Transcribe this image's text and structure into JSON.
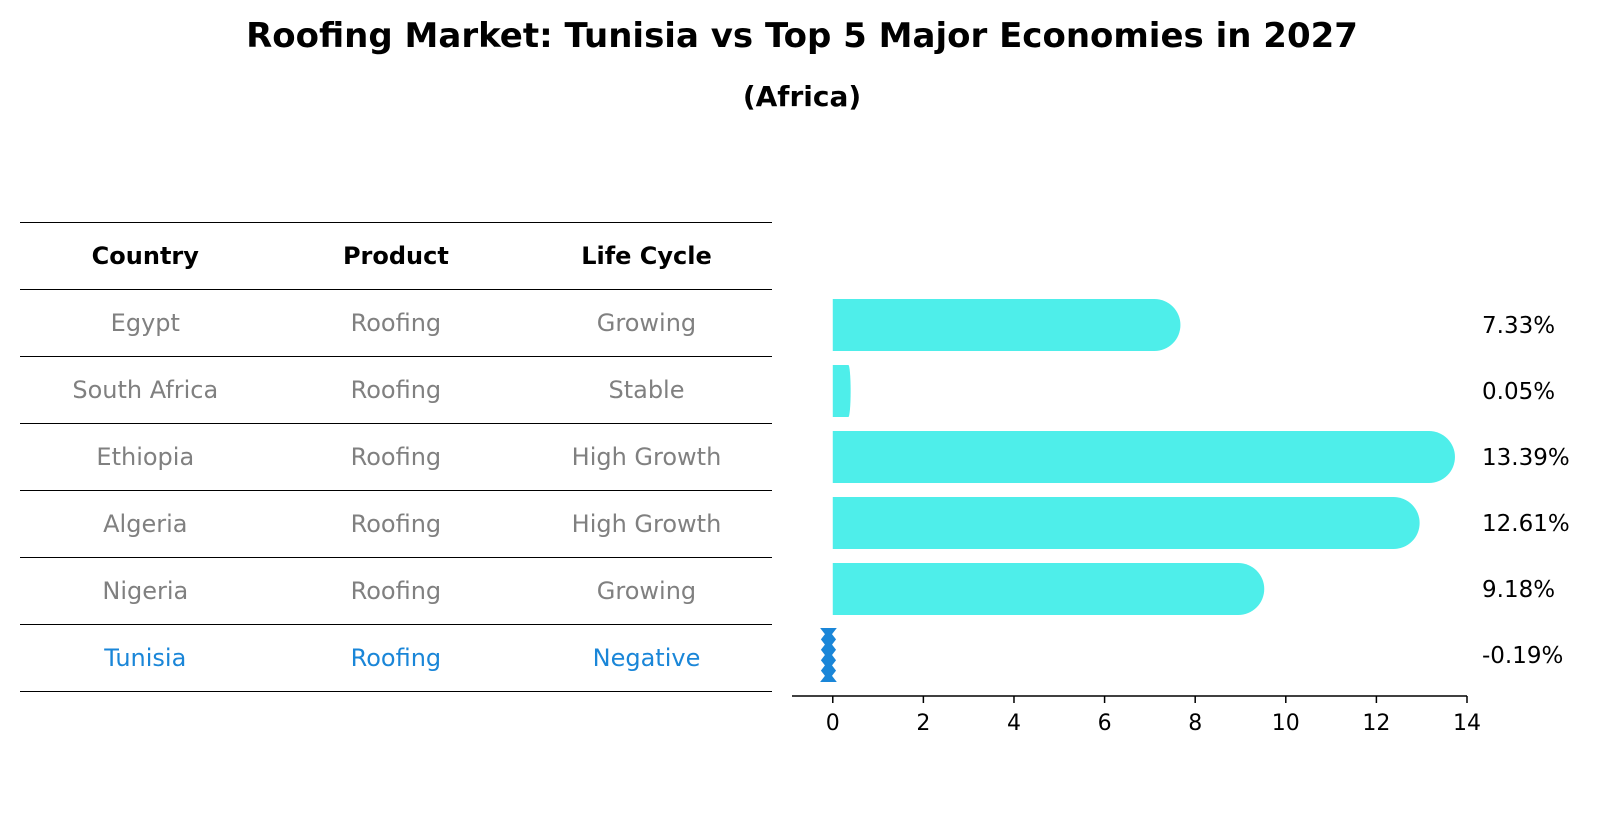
{
  "title": "Roofing Market: Tunisia vs Top 5 Major Economies in 2027",
  "subtitle": "(Africa)",
  "table": {
    "headers": [
      "Country",
      "Product",
      "Life Cycle"
    ],
    "rows": [
      [
        "Egypt",
        "Roofing",
        "Growing"
      ],
      [
        "South Africa",
        "Roofing",
        "Stable"
      ],
      [
        "Ethiopia",
        "Roofing",
        "High Growth"
      ],
      [
        "Algeria",
        "Roofing",
        "High Growth"
      ],
      [
        "Nigeria",
        "Roofing",
        "Growing"
      ],
      [
        "Tunisia",
        "Roofing",
        "Negative"
      ]
    ],
    "highlight_row": 5,
    "highlight_color": "#1a86d8",
    "text_color": "#808080"
  },
  "chart_data": {
    "type": "bar",
    "orientation": "horizontal",
    "categories": [
      "Egypt",
      "South Africa",
      "Ethiopia",
      "Algeria",
      "Nigeria",
      "Tunisia"
    ],
    "values": [
      7.33,
      0.05,
      13.39,
      12.61,
      9.18,
      -0.19
    ],
    "value_labels": [
      "7.33%",
      "0.05%",
      "13.39%",
      "12.61%",
      "9.18%",
      "-0.19%"
    ],
    "xlim": [
      -0.9,
      14
    ],
    "xticks": [
      0,
      2,
      4,
      6,
      8,
      10,
      12,
      14
    ],
    "bar_color": "#4eeeea",
    "highlight_color": "#1a86d8",
    "grid": false,
    "xlabel": "",
    "ylabel": ""
  }
}
